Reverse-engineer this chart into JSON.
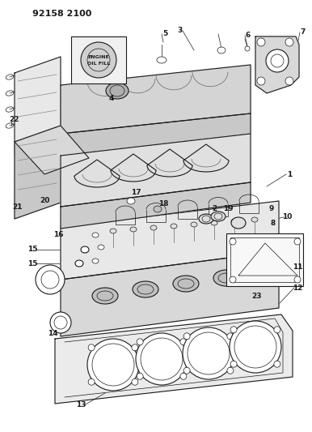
{
  "title": "92158 2100",
  "bg_color": "#ffffff",
  "line_color": "#1a1a1a",
  "fig_width": 3.86,
  "fig_height": 5.33,
  "dpi": 100
}
